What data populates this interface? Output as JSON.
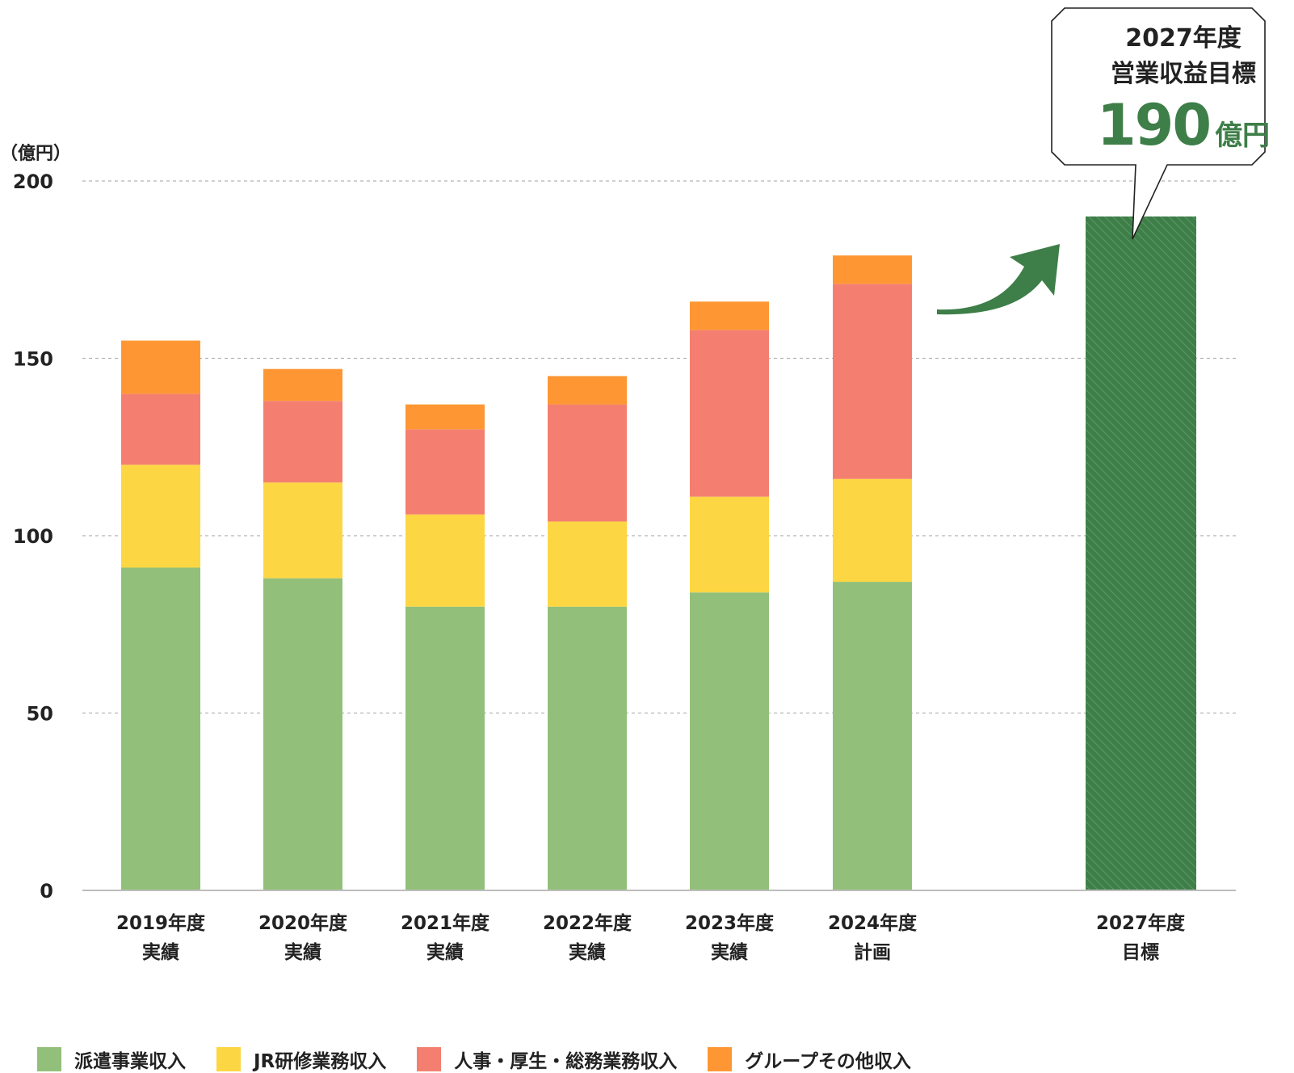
{
  "chart_data": {
    "type": "bar",
    "stacked": true,
    "title": "",
    "xlabel": "",
    "ylabel": "（億円）",
    "ylim": [
      0,
      200
    ],
    "yticks": [
      0,
      50,
      100,
      150,
      200
    ],
    "grid": true,
    "legend_position": "bottom",
    "categories": [
      [
        "2019年度",
        "実績"
      ],
      [
        "2020年度",
        "実績"
      ],
      [
        "2021年度",
        "実績"
      ],
      [
        "2022年度",
        "実績"
      ],
      [
        "2023年度",
        "実績"
      ],
      [
        "2024年度",
        "計画"
      ]
    ],
    "series": [
      {
        "name": "派遣事業収入",
        "color": "#92c07a",
        "values": [
          91,
          88,
          80,
          80,
          84,
          87
        ]
      },
      {
        "name": "JR研修業務収入",
        "color": "#fdd643",
        "values": [
          29,
          27,
          26,
          24,
          27,
          29
        ]
      },
      {
        "name": "人事・厚生・総務業務収入",
        "color": "#f47f70",
        "values": [
          20,
          23,
          24,
          33,
          47,
          55
        ]
      },
      {
        "name": "グループその他収入",
        "color": "#fe9733",
        "values": [
          15,
          9,
          7,
          8,
          8,
          8
        ]
      }
    ],
    "target": {
      "category": [
        "2027年度",
        "目標"
      ],
      "value": 190,
      "color": "#3e7e48",
      "pattern": "diagonal-hatch",
      "callout": {
        "title_lines": [
          "2027年度",
          "営業収益目標"
        ],
        "value": "190",
        "unit": "億円"
      }
    }
  }
}
